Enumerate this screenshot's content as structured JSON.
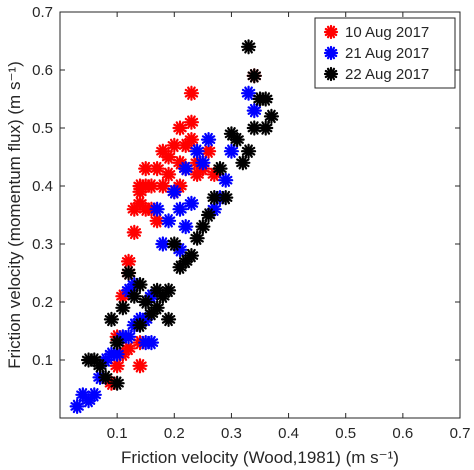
{
  "chart_data": {
    "type": "scatter",
    "xlabel": "Friction velocity (Wood,1981) (m s⁻¹)",
    "ylabel": "Friction velocity (momentum flux) (m s⁻¹)",
    "xlim": [
      0,
      0.7
    ],
    "ylim": [
      0,
      0.7
    ],
    "xticks": [
      "0.1",
      "0.2",
      "0.3",
      "0.4",
      "0.5",
      "0.6",
      "0.7"
    ],
    "yticks": [
      "0.1",
      "0.2",
      "0.3",
      "0.4",
      "0.5",
      "0.6",
      "0.7"
    ],
    "grid": false,
    "legend_position": "top-right",
    "series": [
      {
        "name": "10 Aug 2017",
        "color": "#ff0000",
        "x": [
          0.1,
          0.11,
          0.12,
          0.12,
          0.13,
          0.13,
          0.14,
          0.14,
          0.14,
          0.15,
          0.15,
          0.15,
          0.16,
          0.16,
          0.17,
          0.17,
          0.18,
          0.18,
          0.19,
          0.19,
          0.2,
          0.2,
          0.21,
          0.21,
          0.21,
          0.22,
          0.22,
          0.23,
          0.23,
          0.23,
          0.24,
          0.24,
          0.25,
          0.26,
          0.27,
          0.34,
          0.09,
          0.1,
          0.11,
          0.12,
          0.14,
          0.14
        ],
        "y": [
          0.14,
          0.21,
          0.25,
          0.27,
          0.32,
          0.36,
          0.37,
          0.39,
          0.4,
          0.36,
          0.4,
          0.43,
          0.36,
          0.4,
          0.34,
          0.43,
          0.46,
          0.4,
          0.42,
          0.45,
          0.39,
          0.47,
          0.44,
          0.5,
          0.4,
          0.47,
          0.43,
          0.56,
          0.51,
          0.48,
          0.42,
          0.44,
          0.43,
          0.46,
          0.42,
          0.59,
          0.06,
          0.09,
          0.11,
          0.12,
          0.09,
          0.13
        ]
      },
      {
        "name": "21 Aug 2017",
        "color": "#0000ff",
        "x": [
          0.03,
          0.04,
          0.05,
          0.06,
          0.07,
          0.08,
          0.09,
          0.1,
          0.11,
          0.12,
          0.13,
          0.14,
          0.15,
          0.16,
          0.17,
          0.18,
          0.19,
          0.2,
          0.21,
          0.22,
          0.23,
          0.24,
          0.25,
          0.26,
          0.27,
          0.28,
          0.29,
          0.3,
          0.33,
          0.34,
          0.12,
          0.13,
          0.15,
          0.16,
          0.21,
          0.22
        ],
        "y": [
          0.02,
          0.04,
          0.03,
          0.04,
          0.07,
          0.1,
          0.11,
          0.11,
          0.14,
          0.22,
          0.23,
          0.17,
          0.13,
          0.21,
          0.36,
          0.3,
          0.34,
          0.39,
          0.36,
          0.43,
          0.37,
          0.46,
          0.44,
          0.48,
          0.36,
          0.38,
          0.41,
          0.46,
          0.56,
          0.53,
          0.14,
          0.16,
          0.17,
          0.13,
          0.29,
          0.33
        ]
      },
      {
        "name": "22 Aug 2017",
        "color": "#000000",
        "x": [
          0.05,
          0.06,
          0.07,
          0.08,
          0.09,
          0.1,
          0.11,
          0.12,
          0.13,
          0.14,
          0.15,
          0.16,
          0.17,
          0.18,
          0.19,
          0.2,
          0.21,
          0.22,
          0.23,
          0.24,
          0.25,
          0.26,
          0.27,
          0.28,
          0.29,
          0.3,
          0.31,
          0.32,
          0.33,
          0.34,
          0.35,
          0.36,
          0.37,
          0.33,
          0.34,
          0.36,
          0.1,
          0.14,
          0.17,
          0.19
        ],
        "y": [
          0.1,
          0.1,
          0.09,
          0.07,
          0.17,
          0.06,
          0.19,
          0.25,
          0.21,
          0.23,
          0.2,
          0.18,
          0.22,
          0.21,
          0.22,
          0.3,
          0.26,
          0.27,
          0.28,
          0.31,
          0.33,
          0.35,
          0.38,
          0.43,
          0.38,
          0.49,
          0.48,
          0.44,
          0.64,
          0.59,
          0.55,
          0.55,
          0.52,
          0.46,
          0.5,
          0.5,
          0.13,
          0.16,
          0.19,
          0.17
        ]
      }
    ]
  }
}
